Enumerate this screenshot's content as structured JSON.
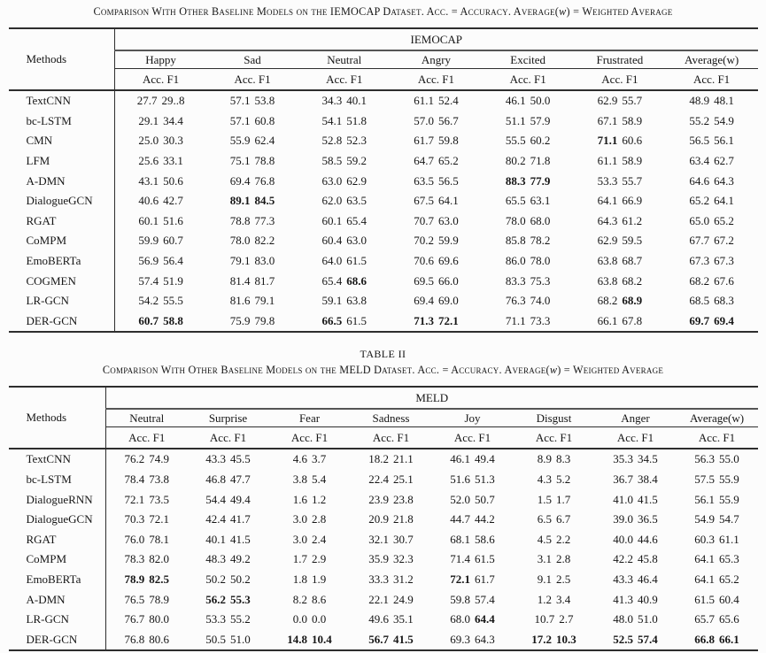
{
  "colors": {
    "text": "#161616",
    "rule": "#2e2e2e",
    "background": "#fcfcfc"
  },
  "table1": {
    "caption": {
      "pre": "Comparison With Other Baseline Models on the IEMOCAP Dataset. Acc. = Accuracy. Average(",
      "var": "w",
      "post": ") = Weighted Average"
    },
    "methods_header": "Methods",
    "group_header": "IEMOCAP",
    "subheader": "Acc. F1",
    "columns": [
      "Happy",
      "Sad",
      "Neutral",
      "Angry",
      "Excited",
      "Frustrated",
      "Average(w)"
    ],
    "rows": [
      {
        "method": "TextCNN",
        "cells": [
          [
            "27.7",
            "29..8"
          ],
          [
            "57.1",
            "53.8"
          ],
          [
            "34.3",
            "40.1"
          ],
          [
            "61.1",
            "52.4"
          ],
          [
            "46.1",
            "50.0"
          ],
          [
            "62.9",
            "55.7"
          ],
          [
            "48.9",
            "48.1"
          ]
        ]
      },
      {
        "method": "bc-LSTM",
        "cells": [
          [
            "29.1",
            "34.4"
          ],
          [
            "57.1",
            "60.8"
          ],
          [
            "54.1",
            "51.8"
          ],
          [
            "57.0",
            "56.7"
          ],
          [
            "51.1",
            "57.9"
          ],
          [
            "67.1",
            "58.9"
          ],
          [
            "55.2",
            "54.9"
          ]
        ]
      },
      {
        "method": "CMN",
        "cells": [
          [
            "25.0",
            "30.3"
          ],
          [
            "55.9",
            "62.4"
          ],
          [
            "52.8",
            "52.3"
          ],
          [
            "61.7",
            "59.8"
          ],
          [
            "55.5",
            "60.2"
          ],
          [
            "71.1",
            "60.6",
            1,
            0
          ],
          [
            "56.5",
            "56.1"
          ]
        ]
      },
      {
        "method": "LFM",
        "cells": [
          [
            "25.6",
            "33.1"
          ],
          [
            "75.1",
            "78.8"
          ],
          [
            "58.5",
            "59.2"
          ],
          [
            "64.7",
            "65.2"
          ],
          [
            "80.2",
            "71.8"
          ],
          [
            "61.1",
            "58.9"
          ],
          [
            "63.4",
            "62.7"
          ]
        ]
      },
      {
        "method": "A-DMN",
        "cells": [
          [
            "43.1",
            "50.6"
          ],
          [
            "69.4",
            "76.8"
          ],
          [
            "63.0",
            "62.9"
          ],
          [
            "63.5",
            "56.5"
          ],
          [
            "88.3",
            "77.9",
            1,
            1
          ],
          [
            "53.3",
            "55.7"
          ],
          [
            "64.6",
            "64.3"
          ]
        ]
      },
      {
        "method": "DialogueGCN",
        "cells": [
          [
            "40.6",
            "42.7"
          ],
          [
            "89.1",
            "84.5",
            1,
            1
          ],
          [
            "62.0",
            "63.5"
          ],
          [
            "67.5",
            "64.1"
          ],
          [
            "65.5",
            "63.1"
          ],
          [
            "64.1",
            "66.9"
          ],
          [
            "65.2",
            "64.1"
          ]
        ]
      },
      {
        "method": "RGAT",
        "cells": [
          [
            "60.1",
            "51.6"
          ],
          [
            "78.8",
            "77.3"
          ],
          [
            "60.1",
            "65.4"
          ],
          [
            "70.7",
            "63.0"
          ],
          [
            "78.0",
            "68.0"
          ],
          [
            "64.3",
            "61.2"
          ],
          [
            "65.0",
            "65.2"
          ]
        ]
      },
      {
        "method": "CoMPM",
        "cells": [
          [
            "59.9",
            "60.7"
          ],
          [
            "78.0",
            "82.2"
          ],
          [
            "60.4",
            "63.0"
          ],
          [
            "70.2",
            "59.9"
          ],
          [
            "85.8",
            "78.2"
          ],
          [
            "62.9",
            "59.5"
          ],
          [
            "67.7",
            "67.2"
          ]
        ]
      },
      {
        "method": "EmoBERTa",
        "cells": [
          [
            "56.9",
            "56.4"
          ],
          [
            "79.1",
            "83.0"
          ],
          [
            "64.0",
            "61.5"
          ],
          [
            "70.6",
            "69.6"
          ],
          [
            "86.0",
            "78.0"
          ],
          [
            "63.8",
            "68.7"
          ],
          [
            "67.3",
            "67.3"
          ]
        ]
      },
      {
        "method": "COGMEN",
        "cells": [
          [
            "57.4",
            "51.9"
          ],
          [
            "81.4",
            "81.7"
          ],
          [
            "65.4",
            "68.6",
            0,
            1
          ],
          [
            "69.5",
            "66.0"
          ],
          [
            "83.3",
            "75.3"
          ],
          [
            "63.8",
            "68.2"
          ],
          [
            "68.2",
            "67.6"
          ]
        ]
      },
      {
        "method": "LR-GCN",
        "cells": [
          [
            "54.2",
            "55.5"
          ],
          [
            "81.6",
            "79.1"
          ],
          [
            "59.1",
            "63.8"
          ],
          [
            "69.4",
            "69.0"
          ],
          [
            "76.3",
            "74.0"
          ],
          [
            "68.2",
            "68.9",
            0,
            1
          ],
          [
            "68.5",
            "68.3"
          ]
        ]
      },
      {
        "method": "DER-GCN",
        "cells": [
          [
            "60.7",
            "58.8",
            1,
            1
          ],
          [
            "75.9",
            "79.8"
          ],
          [
            "66.5",
            "61.5",
            1,
            0
          ],
          [
            "71.3",
            "72.1",
            1,
            1
          ],
          [
            "71.1",
            "73.3"
          ],
          [
            "66.1",
            "67.8"
          ],
          [
            "69.7",
            "69.4",
            1,
            1
          ]
        ]
      }
    ]
  },
  "table2": {
    "number": "TABLE II",
    "caption": {
      "pre": "Comparison With Other Baseline Models on the MELD Dataset. Acc. = Accuracy. Average(",
      "var": "w",
      "post": ") = Weighted Average"
    },
    "methods_header": "Methods",
    "group_header": "MELD",
    "subheader": "Acc. F1",
    "columns": [
      "Neutral",
      "Surprise",
      "Fear",
      "Sadness",
      "Joy",
      "Disgust",
      "Anger",
      "Average(w)"
    ],
    "rows": [
      {
        "method": "TextCNN",
        "cells": [
          [
            "76.2",
            "74.9"
          ],
          [
            "43.3",
            "45.5"
          ],
          [
            "4.6",
            "3.7"
          ],
          [
            "18.2",
            "21.1"
          ],
          [
            "46.1",
            "49.4"
          ],
          [
            "8.9",
            "8.3"
          ],
          [
            "35.3",
            "34.5"
          ],
          [
            "56.3",
            "55.0"
          ]
        ]
      },
      {
        "method": "bc-LSTM",
        "cells": [
          [
            "78.4",
            "73.8"
          ],
          [
            "46.8",
            "47.7"
          ],
          [
            "3.8",
            "5.4"
          ],
          [
            "22.4",
            "25.1"
          ],
          [
            "51.6",
            "51.3"
          ],
          [
            "4.3",
            "5.2"
          ],
          [
            "36.7",
            "38.4"
          ],
          [
            "57.5",
            "55.9"
          ]
        ]
      },
      {
        "method": "DialogueRNN",
        "cells": [
          [
            "72.1",
            "73.5"
          ],
          [
            "54.4",
            "49.4"
          ],
          [
            "1.6",
            "1.2"
          ],
          [
            "23.9",
            "23.8"
          ],
          [
            "52.0",
            "50.7"
          ],
          [
            "1.5",
            "1.7"
          ],
          [
            "41.0",
            "41.5"
          ],
          [
            "56.1",
            "55.9"
          ]
        ]
      },
      {
        "method": "DialogueGCN",
        "cells": [
          [
            "70.3",
            "72.1"
          ],
          [
            "42.4",
            "41.7"
          ],
          [
            "3.0",
            "2.8"
          ],
          [
            "20.9",
            "21.8"
          ],
          [
            "44.7",
            "44.2"
          ],
          [
            "6.5",
            "6.7"
          ],
          [
            "39.0",
            "36.5"
          ],
          [
            "54.9",
            "54.7"
          ]
        ]
      },
      {
        "method": "RGAT",
        "cells": [
          [
            "76.0",
            "78.1"
          ],
          [
            "40.1",
            "41.5"
          ],
          [
            "3.0",
            "2.4"
          ],
          [
            "32.1",
            "30.7"
          ],
          [
            "68.1",
            "58.6"
          ],
          [
            "4.5",
            "2.2"
          ],
          [
            "40.0",
            "44.6"
          ],
          [
            "60.3",
            "61.1"
          ]
        ]
      },
      {
        "method": "CoMPM",
        "cells": [
          [
            "78.3",
            "82.0"
          ],
          [
            "48.3",
            "49.2"
          ],
          [
            "1.7",
            "2.9"
          ],
          [
            "35.9",
            "32.3"
          ],
          [
            "71.4",
            "61.5"
          ],
          [
            "3.1",
            "2.8"
          ],
          [
            "42.2",
            "45.8"
          ],
          [
            "64.1",
            "65.3"
          ]
        ]
      },
      {
        "method": "EmoBERTa",
        "cells": [
          [
            "78.9",
            "82.5",
            1,
            1
          ],
          [
            "50.2",
            "50.2"
          ],
          [
            "1.8",
            "1.9"
          ],
          [
            "33.3",
            "31.2"
          ],
          [
            "72.1",
            "61.7",
            1,
            0
          ],
          [
            "9.1",
            "2.5"
          ],
          [
            "43.3",
            "46.4"
          ],
          [
            "64.1",
            "65.2"
          ]
        ]
      },
      {
        "method": "A-DMN",
        "cells": [
          [
            "76.5",
            "78.9"
          ],
          [
            "56.2",
            "55.3",
            1,
            1
          ],
          [
            "8.2",
            "8.6"
          ],
          [
            "22.1",
            "24.9"
          ],
          [
            "59.8",
            "57.4"
          ],
          [
            "1.2",
            "3.4"
          ],
          [
            "41.3",
            "40.9"
          ],
          [
            "61.5",
            "60.4"
          ]
        ]
      },
      {
        "method": "LR-GCN",
        "cells": [
          [
            "76.7",
            "80.0"
          ],
          [
            "53.3",
            "55.2"
          ],
          [
            "0.0",
            "0.0"
          ],
          [
            "49.6",
            "35.1"
          ],
          [
            "68.0",
            "64.4",
            0,
            1
          ],
          [
            "10.7",
            "2.7"
          ],
          [
            "48.0",
            "51.0"
          ],
          [
            "65.7",
            "65.6"
          ]
        ]
      },
      {
        "method": "DER-GCN",
        "cells": [
          [
            "76.8",
            "80.6"
          ],
          [
            "50.5",
            "51.0"
          ],
          [
            "14.8",
            "10.4",
            1,
            1
          ],
          [
            "56.7",
            "41.5",
            1,
            1
          ],
          [
            "69.3",
            "64.3"
          ],
          [
            "17.2",
            "10.3",
            1,
            1
          ],
          [
            "52.5",
            "57.4",
            1,
            1
          ],
          [
            "66.8",
            "66.1",
            1,
            1
          ]
        ]
      }
    ]
  }
}
